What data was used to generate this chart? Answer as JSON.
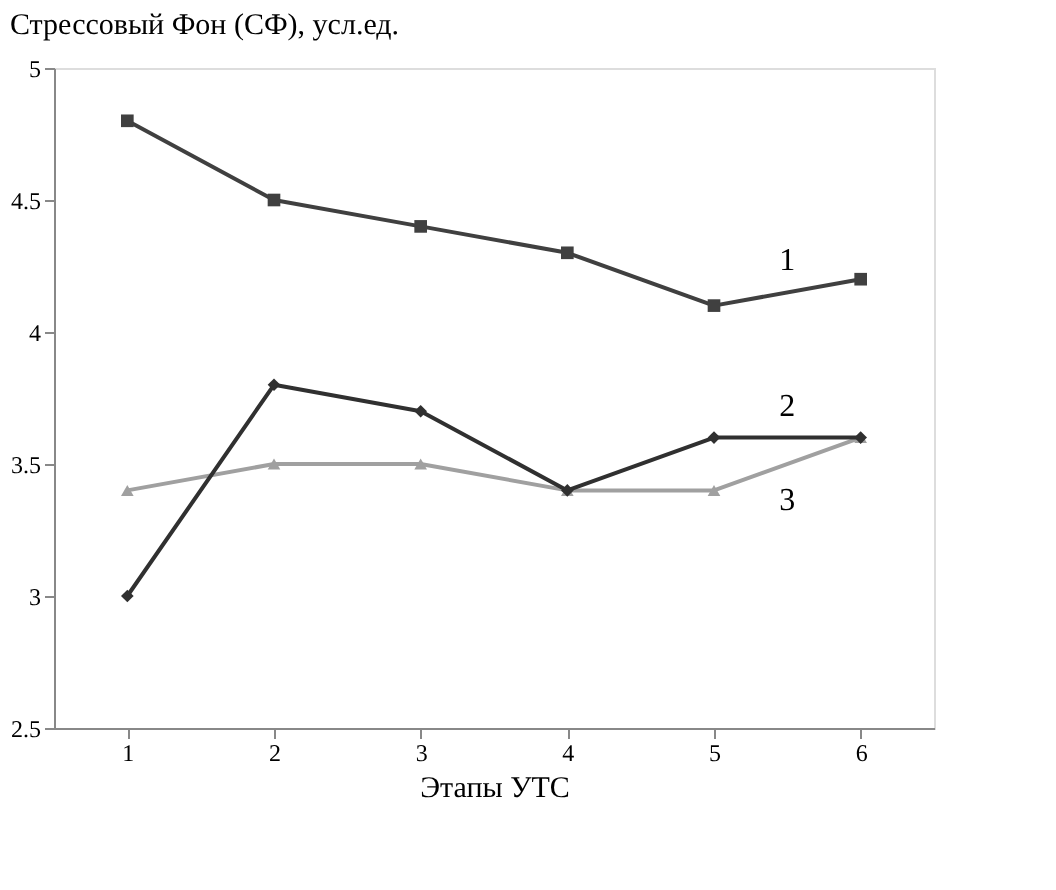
{
  "chart_data": {
    "type": "line",
    "title": "Стрессовый Фон (СФ), усл.ед.",
    "xlabel": "Этапы УТС",
    "x": [
      1,
      2,
      3,
      4,
      5,
      6
    ],
    "xlim": [
      0.5,
      6.5
    ],
    "xticks": [
      1,
      2,
      3,
      4,
      5,
      6
    ],
    "ylim": [
      2.5,
      5
    ],
    "yticks": [
      2.5,
      3,
      3.5,
      4,
      4.5,
      5
    ],
    "grid": false,
    "line_style": "solid",
    "series": [
      {
        "name": "1",
        "color": "#404040",
        "marker": "square",
        "values": [
          4.8,
          4.5,
          4.4,
          4.3,
          4.1,
          4.2
        ]
      },
      {
        "name": "2",
        "color": "#303030",
        "marker": "diamond",
        "values": [
          3.0,
          3.8,
          3.7,
          3.4,
          3.6,
          3.6
        ]
      },
      {
        "name": "3",
        "color": "#a0a0a0",
        "marker": "triangle",
        "values": [
          3.4,
          3.5,
          3.5,
          3.4,
          3.4,
          3.6
        ]
      }
    ]
  }
}
